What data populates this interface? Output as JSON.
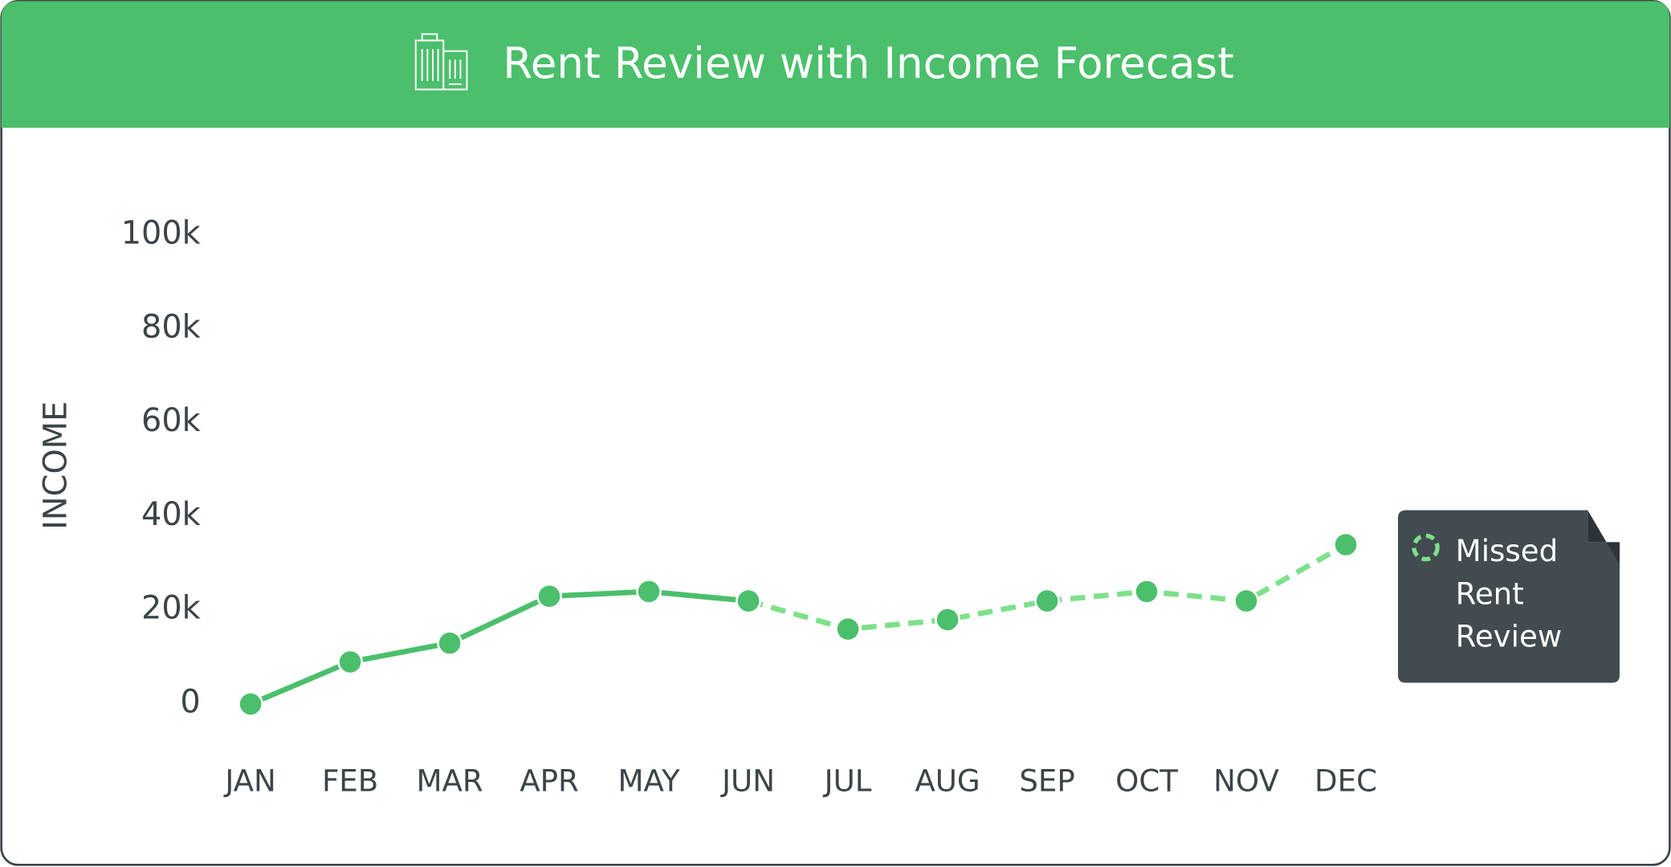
{
  "chart_data": {
    "type": "line",
    "title": "Rent Review with Income Forecast",
    "ylabel": "INCOME",
    "categories": [
      "JAN",
      "FEB",
      "MAR",
      "APR",
      "MAY",
      "JUN",
      "JUL",
      "AUG",
      "SEP",
      "OCT",
      "NOV",
      "DEC"
    ],
    "series": [
      {
        "color": "#4bbf6b",
        "dashed": false,
        "values": [
          0,
          9000,
          13000,
          23000,
          24000,
          22000,
          null,
          null,
          null,
          null,
          null,
          null
        ]
      },
      {
        "name": "Missed Rent Review",
        "color": "#7ee08a",
        "dashed": true,
        "values": [
          null,
          null,
          null,
          null,
          null,
          22000,
          16000,
          18000,
          22000,
          24000,
          22000,
          34000
        ]
      }
    ],
    "ylim": [
      0,
      100000
    ],
    "yticks": [
      0,
      {
        "value": 20000,
        "label": "20k"
      },
      {
        "value": 40000,
        "label": "40k"
      },
      {
        "value": 60000,
        "label": "60k"
      },
      {
        "value": 80000,
        "label": "80k"
      },
      {
        "value": 100000,
        "label": "100k"
      }
    ],
    "point_color": "#4bbf6b"
  }
}
